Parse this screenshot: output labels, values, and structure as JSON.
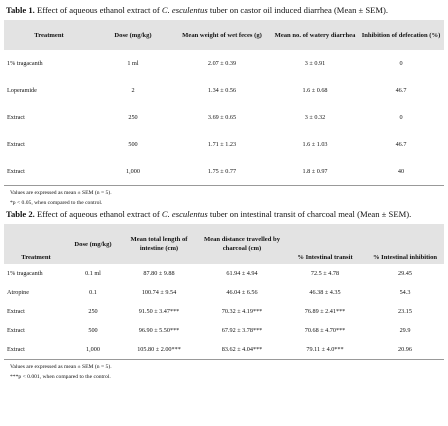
{
  "table1": {
    "label": "Table 1.",
    "caption_pre": "Effect of aqueous ethanol extract of",
    "caption_species": "C. esculentus",
    "caption_post": "tuber on castor oil induced diarrhea (Mean ± SEM).",
    "headers": [
      "Treatment",
      "Dose (mg/kg)",
      "Mean weight of wet feces (g)",
      "Mean no. of watery diarrhea",
      "Inhibition of defecation (%)"
    ],
    "rows": [
      [
        "1% tragacanth",
        "1 ml",
        "2.07 ± 0.39",
        "3 ± 0.91",
        "0"
      ],
      [
        "Loperamide",
        "2",
        "1.34 ± 0.56",
        "1.6 ± 0.68",
        "46.7"
      ],
      [
        "Extract",
        "250",
        "3.69 ± 0.65",
        "3 ± 0.32",
        "0"
      ],
      [
        "Extract",
        "500",
        "1.71 ± 1.23",
        "1.6 ± 1.03",
        "46.7"
      ],
      [
        "Extract",
        "1,000",
        "1.75 ± 0.77",
        "1.8 ± 0.97",
        "40"
      ]
    ],
    "note1": "Values are expressed as mean ± SEM (n = 5).",
    "note2": "*p < 0.05, when compared to the control."
  },
  "table2": {
    "label": "Table 2.",
    "caption_pre": "Effect of aqueous ethanol extract of",
    "caption_species": "C. esculentus",
    "caption_post": "tuber on intestinal transit of charcoal meal (Mean ± SEM).",
    "headers": [
      "Treatment",
      "Dose (mg/kg)",
      "Mean total length of intestine (cm)",
      "Mean distance travelled by charcoal (cm)",
      "% Intestinal transit",
      "% Intestinal inhibition"
    ],
    "rows": [
      [
        "1% tragacanth",
        "0.1 ml",
        "87.80 ± 9.88",
        "61.94 ± 4.94",
        "72.5 ± 4.78",
        "29.45"
      ],
      [
        "Atropine",
        "0.1",
        "100.74 ± 9.54",
        "46.04 ± 6.56",
        "46.38 ± 4.35",
        "54.3"
      ],
      [
        "Extract",
        "250",
        "91.50 ± 3.47***",
        "70.32 ± 4.19***",
        "76.89 ± 2.41***",
        "23.15"
      ],
      [
        "Extract",
        "500",
        "96.90 ± 5.50***",
        "67.92 ± 3.78***",
        "70.68 ± 4.70***",
        "29.9"
      ],
      [
        "Extract",
        "1,000",
        "105.80 ± 2.00***",
        "83.62 ± 4.04***",
        "79.11 ± 4.0***",
        "20.96"
      ]
    ],
    "note1": "Values are expressed as mean ± SEM (n = 5).",
    "note2": "***p < 0.001, when compared to the control."
  }
}
